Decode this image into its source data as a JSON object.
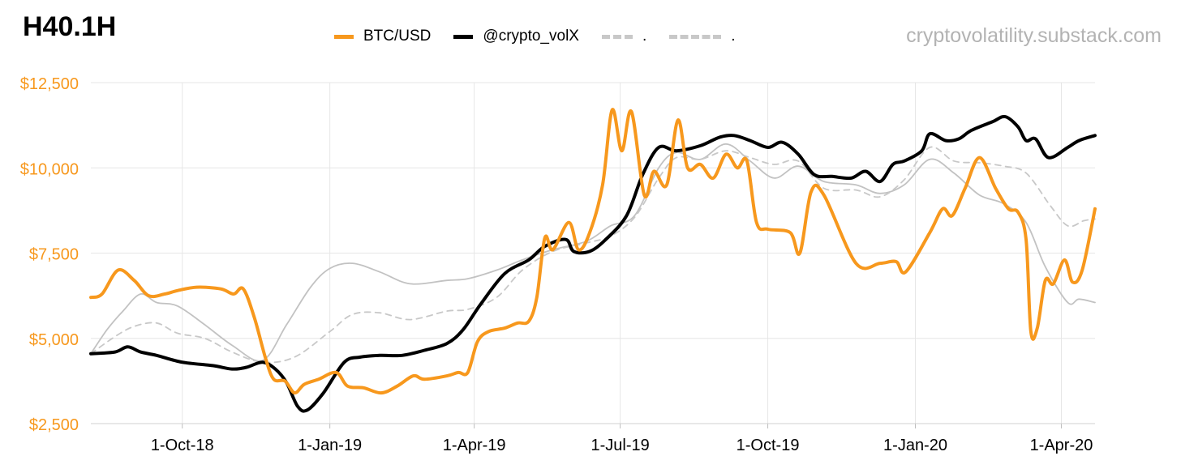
{
  "header": {
    "title": "H40.1H",
    "source": "cryptovolatility.substack.com"
  },
  "chart_data": {
    "type": "line",
    "title": "H40.1H",
    "ylim": [
      2500,
      12500
    ],
    "yticks": [
      2500,
      5000,
      7500,
      10000,
      12500
    ],
    "ytick_labels": [
      "$2,500",
      "$5,000",
      "$7,500",
      "$10,000",
      "$12,500"
    ],
    "xlim": [
      "2018-08-05",
      "2020-04-22"
    ],
    "xticks": [
      "2018-10-01",
      "2019-01-01",
      "2019-04-01",
      "2019-07-01",
      "2019-10-01",
      "2020-01-01",
      "2020-04-01"
    ],
    "xtick_labels": [
      "1-Oct-18",
      "1-Jan-19",
      "1-Apr-19",
      "1-Jul-19",
      "1-Oct-19",
      "1-Jan-20",
      "1-Apr-20"
    ],
    "grid": true,
    "legend_position": "top",
    "colors": {
      "btc": "#F7981D",
      "volx": "#000000",
      "grey_dashed": "#c8c8c8",
      "grey_solid": "#c2c2c2",
      "axis_text": "#F7981D"
    },
    "series": [
      {
        "name": "BTC/USD",
        "style": "solid-orange",
        "points": [
          [
            "2018-08-05",
            6200
          ],
          [
            "2018-08-12",
            6300
          ],
          [
            "2018-08-22",
            7000
          ],
          [
            "2018-09-01",
            6700
          ],
          [
            "2018-09-10",
            6250
          ],
          [
            "2018-09-20",
            6300
          ],
          [
            "2018-09-28",
            6400
          ],
          [
            "2018-10-10",
            6500
          ],
          [
            "2018-10-25",
            6450
          ],
          [
            "2018-11-02",
            6300
          ],
          [
            "2018-11-08",
            6450
          ],
          [
            "2018-11-15",
            5600
          ],
          [
            "2018-11-22",
            4400
          ],
          [
            "2018-11-27",
            3800
          ],
          [
            "2018-12-04",
            3750
          ],
          [
            "2018-12-10",
            3400
          ],
          [
            "2018-12-16",
            3650
          ],
          [
            "2018-12-25",
            3800
          ],
          [
            "2019-01-05",
            4000
          ],
          [
            "2019-01-12",
            3600
          ],
          [
            "2019-01-22",
            3550
          ],
          [
            "2019-02-02",
            3400
          ],
          [
            "2019-02-12",
            3600
          ],
          [
            "2019-02-22",
            3900
          ],
          [
            "2019-03-01",
            3800
          ],
          [
            "2019-03-15",
            3900
          ],
          [
            "2019-03-22",
            4000
          ],
          [
            "2019-03-28",
            4000
          ],
          [
            "2019-04-03",
            4900
          ],
          [
            "2019-04-10",
            5200
          ],
          [
            "2019-04-20",
            5300
          ],
          [
            "2019-04-28",
            5450
          ],
          [
            "2019-05-05",
            5500
          ],
          [
            "2019-05-10",
            6200
          ],
          [
            "2019-05-15",
            7950
          ],
          [
            "2019-05-20",
            7600
          ],
          [
            "2019-05-30",
            8400
          ],
          [
            "2019-06-05",
            7600
          ],
          [
            "2019-06-12",
            8100
          ],
          [
            "2019-06-20",
            9500
          ],
          [
            "2019-06-26",
            11700
          ],
          [
            "2019-07-02",
            10500
          ],
          [
            "2019-07-08",
            11650
          ],
          [
            "2019-07-16",
            9200
          ],
          [
            "2019-07-22",
            9900
          ],
          [
            "2019-07-30",
            9500
          ],
          [
            "2019-08-06",
            11400
          ],
          [
            "2019-08-12",
            10000
          ],
          [
            "2019-08-20",
            10100
          ],
          [
            "2019-08-28",
            9700
          ],
          [
            "2019-09-05",
            10400
          ],
          [
            "2019-09-12",
            10000
          ],
          [
            "2019-09-18",
            10200
          ],
          [
            "2019-09-24",
            8400
          ],
          [
            "2019-10-01",
            8200
          ],
          [
            "2019-10-15",
            8100
          ],
          [
            "2019-10-21",
            7500
          ],
          [
            "2019-10-28",
            9300
          ],
          [
            "2019-11-05",
            9200
          ],
          [
            "2019-11-25",
            7200
          ],
          [
            "2019-12-10",
            7200
          ],
          [
            "2019-12-20",
            7250
          ],
          [
            "2019-12-26",
            6950
          ],
          [
            "2020-01-10",
            8100
          ],
          [
            "2020-01-18",
            8800
          ],
          [
            "2020-01-24",
            8600
          ],
          [
            "2020-02-01",
            9400
          ],
          [
            "2020-02-10",
            10300
          ],
          [
            "2020-02-20",
            9400
          ],
          [
            "2020-02-28",
            8800
          ],
          [
            "2020-03-05",
            8700
          ],
          [
            "2020-03-10",
            7900
          ],
          [
            "2020-03-13",
            5200
          ],
          [
            "2020-03-17",
            5300
          ],
          [
            "2020-03-22",
            6700
          ],
          [
            "2020-03-27",
            6600
          ],
          [
            "2020-04-03",
            7300
          ],
          [
            "2020-04-08",
            6650
          ],
          [
            "2020-04-14",
            7000
          ],
          [
            "2020-04-22",
            8800
          ]
        ]
      },
      {
        "name": "@crypto_volX",
        "style": "solid-black",
        "points": [
          [
            "2018-08-05",
            4550
          ],
          [
            "2018-08-20",
            4600
          ],
          [
            "2018-08-28",
            4750
          ],
          [
            "2018-09-05",
            4600
          ],
          [
            "2018-09-15",
            4500
          ],
          [
            "2018-10-01",
            4300
          ],
          [
            "2018-10-20",
            4200
          ],
          [
            "2018-11-01",
            4100
          ],
          [
            "2018-11-10",
            4150
          ],
          [
            "2018-11-20",
            4300
          ],
          [
            "2018-11-28",
            4100
          ],
          [
            "2018-12-05",
            3700
          ],
          [
            "2018-12-12",
            3000
          ],
          [
            "2018-12-18",
            2900
          ],
          [
            "2018-12-28",
            3400
          ],
          [
            "2019-01-10",
            4300
          ],
          [
            "2019-01-20",
            4450
          ],
          [
            "2019-02-01",
            4500
          ],
          [
            "2019-02-15",
            4500
          ],
          [
            "2019-03-01",
            4650
          ],
          [
            "2019-03-15",
            4850
          ],
          [
            "2019-03-25",
            5250
          ],
          [
            "2019-04-05",
            6000
          ],
          [
            "2019-04-20",
            6900
          ],
          [
            "2019-05-05",
            7300
          ],
          [
            "2019-05-15",
            7700
          ],
          [
            "2019-05-28",
            7900
          ],
          [
            "2019-06-02",
            7550
          ],
          [
            "2019-06-12",
            7550
          ],
          [
            "2019-06-22",
            7900
          ],
          [
            "2019-07-05",
            8600
          ],
          [
            "2019-07-15",
            9800
          ],
          [
            "2019-07-25",
            10600
          ],
          [
            "2019-08-05",
            10500
          ],
          [
            "2019-08-20",
            10650
          ],
          [
            "2019-09-01",
            10900
          ],
          [
            "2019-09-10",
            10950
          ],
          [
            "2019-09-20",
            10800
          ],
          [
            "2019-10-01",
            10600
          ],
          [
            "2019-10-10",
            10750
          ],
          [
            "2019-10-20",
            10400
          ],
          [
            "2019-10-30",
            9800
          ],
          [
            "2019-11-10",
            9750
          ],
          [
            "2019-11-22",
            9700
          ],
          [
            "2019-12-01",
            9900
          ],
          [
            "2019-12-10",
            9600
          ],
          [
            "2019-12-18",
            10100
          ],
          [
            "2019-12-25",
            10200
          ],
          [
            "2020-01-05",
            10500
          ],
          [
            "2020-01-10",
            11000
          ],
          [
            "2020-01-20",
            10800
          ],
          [
            "2020-01-28",
            10850
          ],
          [
            "2020-02-05",
            11100
          ],
          [
            "2020-02-18",
            11350
          ],
          [
            "2020-02-26",
            11500
          ],
          [
            "2020-03-05",
            11200
          ],
          [
            "2020-03-10",
            10800
          ],
          [
            "2020-03-16",
            10850
          ],
          [
            "2020-03-24",
            10300
          ],
          [
            "2020-04-05",
            10600
          ],
          [
            "2020-04-12",
            10800
          ],
          [
            "2020-04-22",
            10950
          ]
        ]
      },
      {
        "name": ".",
        "style": "dashed-grey-short",
        "points": [
          [
            "2018-08-05",
            4550
          ],
          [
            "2018-08-20",
            5050
          ],
          [
            "2018-09-01",
            5350
          ],
          [
            "2018-09-15",
            5450
          ],
          [
            "2018-09-28",
            5150
          ],
          [
            "2018-10-15",
            5000
          ],
          [
            "2018-11-01",
            4600
          ],
          [
            "2018-11-20",
            4300
          ],
          [
            "2018-12-10",
            4450
          ],
          [
            "2019-01-01",
            5200
          ],
          [
            "2019-01-15",
            5700
          ],
          [
            "2019-02-01",
            5750
          ],
          [
            "2019-02-20",
            5550
          ],
          [
            "2019-03-15",
            5800
          ],
          [
            "2019-03-28",
            5850
          ],
          [
            "2019-04-15",
            6200
          ],
          [
            "2019-05-01",
            7000
          ],
          [
            "2019-05-20",
            7550
          ],
          [
            "2019-06-10",
            7800
          ],
          [
            "2019-06-25",
            8000
          ],
          [
            "2019-07-10",
            8550
          ],
          [
            "2019-07-25",
            9700
          ],
          [
            "2019-08-05",
            10300
          ],
          [
            "2019-08-20",
            10250
          ],
          [
            "2019-09-05",
            10500
          ],
          [
            "2019-09-20",
            10300
          ],
          [
            "2019-10-05",
            10100
          ],
          [
            "2019-10-20",
            10200
          ],
          [
            "2019-11-05",
            9400
          ],
          [
            "2019-11-25",
            9350
          ],
          [
            "2019-12-10",
            9150
          ],
          [
            "2019-12-25",
            9650
          ],
          [
            "2020-01-10",
            10600
          ],
          [
            "2020-01-25",
            10200
          ],
          [
            "2020-02-10",
            10150
          ],
          [
            "2020-02-25",
            10050
          ],
          [
            "2020-03-10",
            9850
          ],
          [
            "2020-03-25",
            8900
          ],
          [
            "2020-04-05",
            8300
          ],
          [
            "2020-04-15",
            8450
          ],
          [
            "2020-04-22",
            8500
          ]
        ]
      },
      {
        "name": ".",
        "style": "dashed-grey-long",
        "points": []
      },
      {
        "name": "",
        "style": "solid-grey",
        "points": [
          [
            "2018-08-05",
            4550
          ],
          [
            "2018-08-15",
            5250
          ],
          [
            "2018-08-25",
            5800
          ],
          [
            "2018-09-05",
            6300
          ],
          [
            "2018-09-15",
            6050
          ],
          [
            "2018-09-28",
            5950
          ],
          [
            "2018-10-15",
            5400
          ],
          [
            "2018-11-01",
            4800
          ],
          [
            "2018-11-20",
            4350
          ],
          [
            "2018-12-05",
            5400
          ],
          [
            "2018-12-20",
            6500
          ],
          [
            "2019-01-01",
            7050
          ],
          [
            "2019-01-15",
            7200
          ],
          [
            "2019-02-01",
            6950
          ],
          [
            "2019-02-20",
            6600
          ],
          [
            "2019-03-15",
            6700
          ],
          [
            "2019-03-28",
            6750
          ],
          [
            "2019-04-15",
            7000
          ],
          [
            "2019-05-01",
            7300
          ],
          [
            "2019-05-20",
            7600
          ],
          [
            "2019-06-10",
            7850
          ],
          [
            "2019-06-25",
            8300
          ],
          [
            "2019-07-10",
            8600
          ],
          [
            "2019-07-25",
            10000
          ],
          [
            "2019-08-05",
            10450
          ],
          [
            "2019-08-20",
            10250
          ],
          [
            "2019-09-05",
            10700
          ],
          [
            "2019-09-20",
            10200
          ],
          [
            "2019-10-05",
            9700
          ],
          [
            "2019-10-20",
            10050
          ],
          [
            "2019-11-05",
            9600
          ],
          [
            "2019-11-25",
            9500
          ],
          [
            "2019-12-10",
            9250
          ],
          [
            "2019-12-25",
            9500
          ],
          [
            "2020-01-10",
            10250
          ],
          [
            "2020-01-25",
            9850
          ],
          [
            "2020-02-10",
            9200
          ],
          [
            "2020-02-25",
            8950
          ],
          [
            "2020-03-10",
            8400
          ],
          [
            "2020-03-22",
            7100
          ],
          [
            "2020-04-05",
            6050
          ],
          [
            "2020-04-12",
            6150
          ],
          [
            "2020-04-22",
            6050
          ]
        ]
      }
    ]
  },
  "legend": [
    {
      "label": "BTC/USD",
      "color": "#F7981D",
      "style": "solid"
    },
    {
      "label": "@crypto_volX",
      "color": "#000000",
      "style": "solid"
    },
    {
      "label": ".",
      "color": "#c8c8c8",
      "style": "dashed"
    },
    {
      "label": ".",
      "color": "#c8c8c8",
      "style": "dashed"
    }
  ]
}
